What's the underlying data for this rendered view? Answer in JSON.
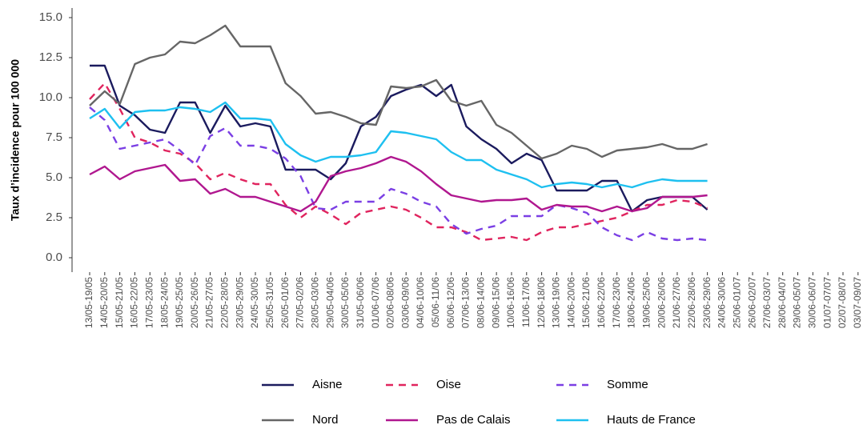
{
  "chart_data": {
    "type": "line",
    "y_label": "Taux d’incidence pour 100 000",
    "categories": [
      "13/05-19/05",
      "14/05-20/05",
      "15/05-21/05",
      "16/05-22/05",
      "17/05-23/05",
      "18/05-24/05",
      "19/05-25/05",
      "20/05-26/05",
      "21/05-27/05",
      "22/05-28/05",
      "23/05-29/05",
      "24/05-30/05",
      "25/05-31/05",
      "26/05-01/06",
      "27/05-02/06",
      "28/05-03/06",
      "29/05-04/06",
      "30/05-05/06",
      "31/05-06/06",
      "01/06-07/06",
      "02/06-08/06",
      "03/06-09/06",
      "04/06-10/06",
      "05/06-11/06",
      "06/06-12/06",
      "07/06-13/06",
      "08/06-14/06",
      "09/06-15/06",
      "10/06-16/06",
      "11/06-17/06",
      "12/06-18/06",
      "13/06-19/06",
      "14/06-20/06",
      "15/06-21/06",
      "16/06-22/06",
      "17/06-23/06",
      "18/06-24/06",
      "19/06-25/06",
      "20/06-26/06",
      "21/06-27/06",
      "22/06-28/06",
      "23/06-29/06",
      "24/06-30/06",
      "25/06-01/07",
      "26/06-02/07",
      "27/06-03/07",
      "28/06-04/07",
      "29/06-05/07",
      "30/06-06/07",
      "01/07-07/07",
      "02/07-08/07",
      "03/07-09/07"
    ],
    "series": [
      {
        "name": "Aisne",
        "color": "#1b1b5e",
        "line_style": "solid",
        "values": [
          12.0,
          12.0,
          9.5,
          8.9,
          8.0,
          7.8,
          9.7,
          9.7,
          7.8,
          9.5,
          8.2,
          8.4,
          8.2,
          5.5,
          5.5,
          5.5,
          4.9,
          5.9,
          8.2,
          8.8,
          10.1,
          10.5,
          10.8,
          10.1,
          10.8,
          8.2,
          7.4,
          6.8,
          5.9,
          6.5,
          6.1,
          4.2,
          4.2,
          4.2,
          4.8,
          4.8,
          2.9,
          3.6,
          3.8,
          3.8,
          3.8,
          3.0,
          null,
          null,
          null,
          null,
          null,
          null,
          null,
          null,
          null,
          null
        ]
      },
      {
        "name": "Oise",
        "color": "#e0245e",
        "line_style": "dashed",
        "values": [
          9.9,
          10.9,
          9.3,
          7.5,
          7.2,
          6.7,
          6.5,
          5.9,
          4.9,
          5.3,
          4.9,
          4.6,
          4.6,
          3.3,
          2.5,
          3.2,
          2.7,
          2.1,
          2.8,
          3.0,
          3.2,
          3.0,
          2.5,
          1.9,
          1.9,
          1.6,
          1.1,
          1.2,
          1.3,
          1.1,
          1.6,
          1.9,
          1.9,
          2.1,
          2.3,
          2.5,
          2.9,
          3.3,
          3.3,
          3.6,
          3.5,
          3.1,
          null,
          null,
          null,
          null,
          null,
          null,
          null,
          null,
          null,
          null
        ]
      },
      {
        "name": "Somme",
        "color": "#7b3fe4",
        "line_style": "dashed",
        "values": [
          9.4,
          8.6,
          6.8,
          7.0,
          7.2,
          7.4,
          6.7,
          5.8,
          7.6,
          8.1,
          7.0,
          7.0,
          6.8,
          6.2,
          5.1,
          3.1,
          3.0,
          3.5,
          3.5,
          3.5,
          4.3,
          4.0,
          3.5,
          3.2,
          2.1,
          1.5,
          1.8,
          2.0,
          2.6,
          2.6,
          2.6,
          3.3,
          3.1,
          2.8,
          1.9,
          1.4,
          1.1,
          1.6,
          1.2,
          1.1,
          1.2,
          1.1,
          null,
          null,
          null,
          null,
          null,
          null,
          null,
          null,
          null,
          null
        ]
      },
      {
        "name": "Nord",
        "color": "#666666",
        "line_style": "solid",
        "values": [
          9.5,
          10.4,
          9.6,
          12.1,
          12.5,
          12.7,
          13.5,
          13.4,
          13.9,
          14.5,
          13.2,
          13.2,
          13.2,
          10.9,
          10.1,
          9.0,
          9.1,
          8.8,
          8.4,
          8.3,
          10.7,
          10.6,
          10.7,
          11.1,
          9.8,
          9.5,
          9.8,
          8.3,
          7.8,
          7.0,
          6.2,
          6.5,
          7.0,
          6.8,
          6.3,
          6.7,
          6.8,
          6.9,
          7.1,
          6.8,
          6.8,
          7.1,
          null,
          null,
          null,
          null,
          null,
          null,
          null,
          null,
          null,
          null
        ]
      },
      {
        "name": "Pas de Calais",
        "color": "#b0178f",
        "line_style": "solid",
        "values": [
          5.2,
          5.7,
          4.9,
          5.4,
          5.6,
          5.8,
          4.8,
          4.9,
          4.0,
          4.3,
          3.8,
          3.8,
          3.5,
          3.2,
          2.9,
          3.5,
          5.1,
          5.4,
          5.6,
          5.9,
          6.3,
          6.0,
          5.4,
          4.6,
          3.9,
          3.7,
          3.5,
          3.6,
          3.6,
          3.7,
          3.0,
          3.3,
          3.2,
          3.2,
          2.9,
          3.2,
          2.9,
          3.1,
          3.8,
          3.8,
          3.8,
          3.9,
          null,
          null,
          null,
          null,
          null,
          null,
          null,
          null,
          null,
          null
        ]
      },
      {
        "name": "Hauts de France",
        "color": "#1ec0f0",
        "line_style": "solid",
        "values": [
          8.7,
          9.3,
          8.1,
          9.1,
          9.2,
          9.2,
          9.4,
          9.3,
          9.1,
          9.7,
          8.7,
          8.7,
          8.6,
          7.1,
          6.4,
          6.0,
          6.3,
          6.3,
          6.4,
          6.6,
          7.9,
          7.8,
          7.6,
          7.4,
          6.6,
          6.1,
          6.1,
          5.5,
          5.2,
          4.9,
          4.4,
          4.6,
          4.7,
          4.6,
          4.4,
          4.6,
          4.4,
          4.7,
          4.9,
          4.8,
          4.8,
          4.8,
          null,
          null,
          null,
          null,
          null,
          null,
          null,
          null,
          null,
          null
        ]
      }
    ],
    "ylim": [
      -0.9,
      15.6
    ],
    "yticks": [
      {
        "value": 0,
        "label": "0.0"
      },
      {
        "value": 2.5,
        "label": "2.5"
      },
      {
        "value": 5,
        "label": "5.0"
      },
      {
        "value": 7.5,
        "label": "7.5"
      },
      {
        "value": 10,
        "label": "10.0"
      },
      {
        "value": 12.5,
        "label": "12.5"
      },
      {
        "value": 15,
        "label": "15.0"
      }
    ],
    "grid": false
  }
}
